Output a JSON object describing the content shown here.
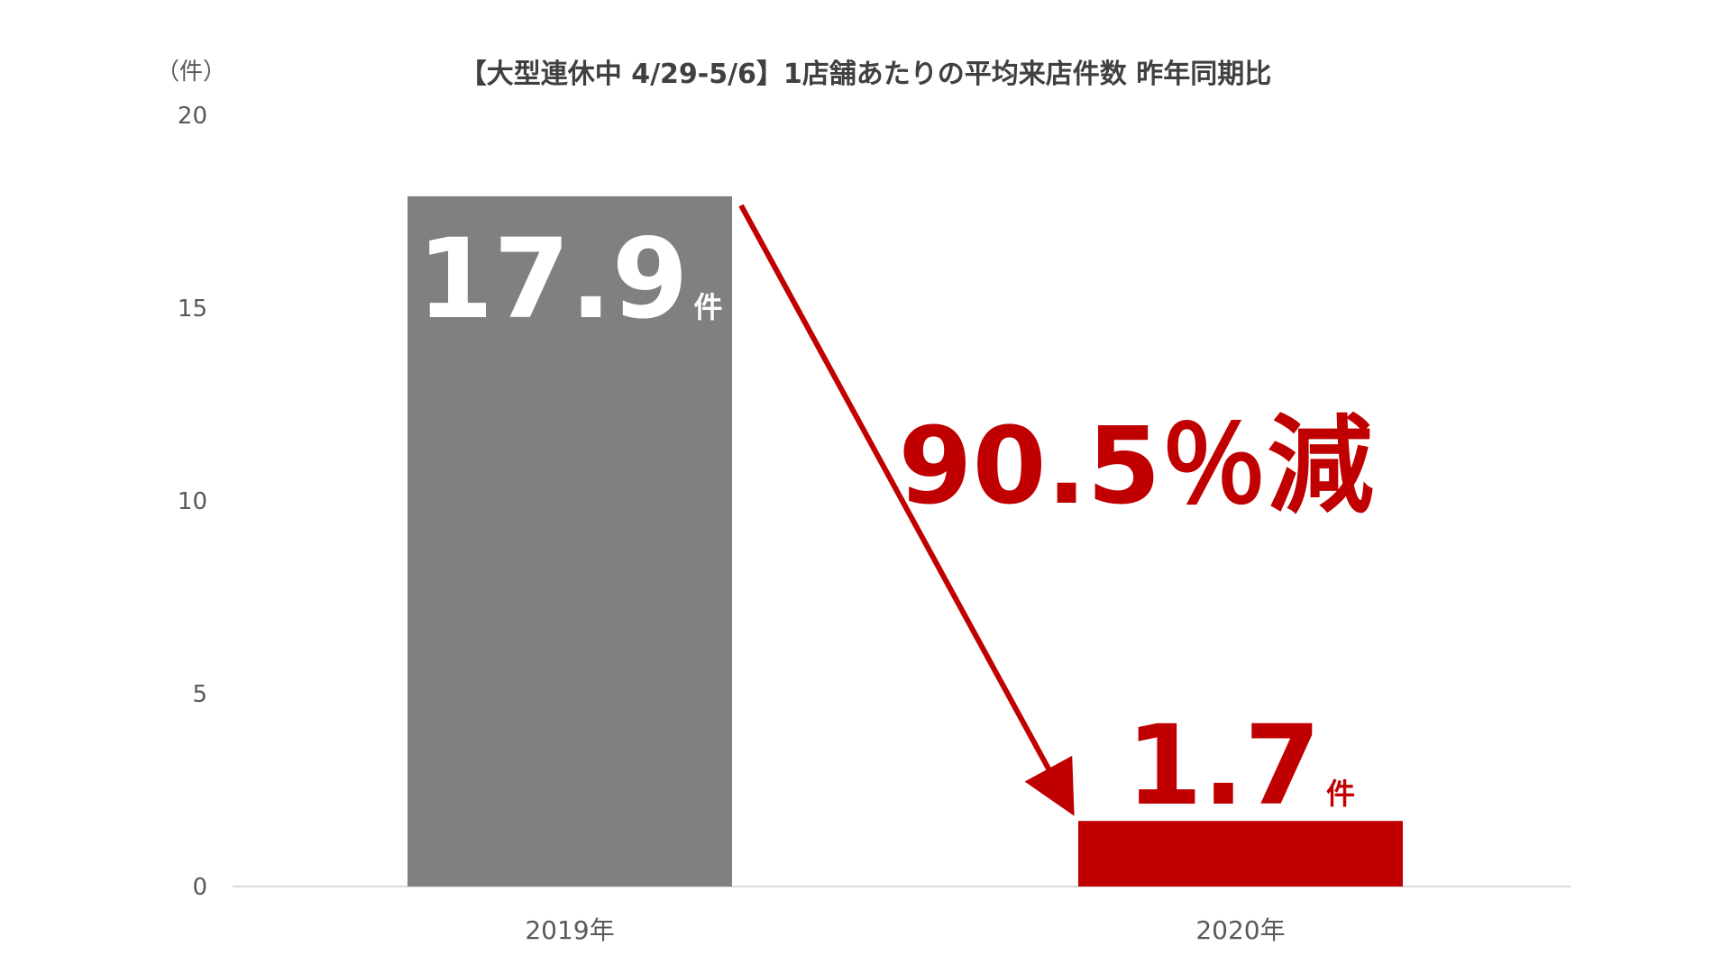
{
  "chart_data": {
    "type": "bar",
    "title": "【大型連休中 4/29-5/6】1店舗あたりの平均来店件数 昨年同期比",
    "unit_label": "（件）",
    "categories": [
      "2019年",
      "2020年"
    ],
    "values": [
      17.9,
      1.7
    ],
    "ylim": [
      0,
      20
    ],
    "yticks": [
      0,
      5,
      10,
      15,
      20
    ],
    "ytick_labels": [
      "0",
      "5",
      "10",
      "15",
      "20"
    ],
    "grid": false,
    "data_labels": [
      {
        "value": "17.9",
        "unit": "件"
      },
      {
        "value": "1.7",
        "unit": "件"
      }
    ],
    "annotation": "90.5％減",
    "colors": {
      "bar_2019": "#808080",
      "bar_2020": "#C00000",
      "label_2019": "#ffffff",
      "label_2020": "#C00000",
      "annotation": "#C00000",
      "arrow": "#C00000"
    }
  }
}
